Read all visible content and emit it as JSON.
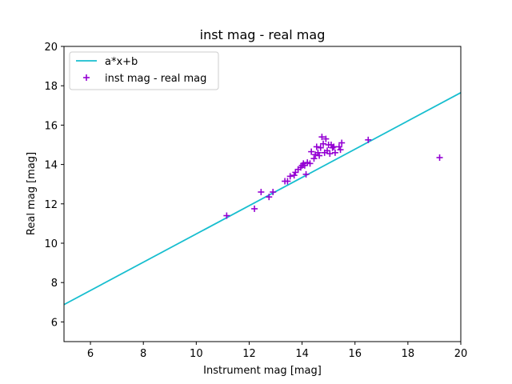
{
  "chart_data": {
    "type": "scatter",
    "title": "inst mag - real mag",
    "xlabel": "Instrument mag [mag]",
    "ylabel": "Real mag [mag]",
    "xlim": [
      5,
      20
    ],
    "ylim": [
      5,
      20
    ],
    "xticks": [
      6,
      8,
      10,
      12,
      14,
      16,
      18,
      20
    ],
    "yticks": [
      6,
      8,
      10,
      12,
      14,
      16,
      18,
      20
    ],
    "grid": false,
    "legend_position": "top-left",
    "series": [
      {
        "name": "a*x+b",
        "kind": "line",
        "color": "#17becf",
        "x": [
          5,
          20
        ],
        "y": [
          6.88,
          17.65
        ]
      },
      {
        "name": "inst mag - real mag",
        "kind": "scatter",
        "marker": "plus",
        "color": "#9400d3",
        "points": [
          [
            11.15,
            11.4
          ],
          [
            12.2,
            11.75
          ],
          [
            12.45,
            12.6
          ],
          [
            12.75,
            12.35
          ],
          [
            12.9,
            12.6
          ],
          [
            13.35,
            13.15
          ],
          [
            13.45,
            13.15
          ],
          [
            13.55,
            13.4
          ],
          [
            13.7,
            13.45
          ],
          [
            13.75,
            13.6
          ],
          [
            13.85,
            13.75
          ],
          [
            13.95,
            13.85
          ],
          [
            14.0,
            13.95
          ],
          [
            14.05,
            14.05
          ],
          [
            14.1,
            13.95
          ],
          [
            14.15,
            13.5
          ],
          [
            14.2,
            14.1
          ],
          [
            14.3,
            14.05
          ],
          [
            14.35,
            14.65
          ],
          [
            14.45,
            14.3
          ],
          [
            14.5,
            14.5
          ],
          [
            14.55,
            14.9
          ],
          [
            14.6,
            14.6
          ],
          [
            14.65,
            14.45
          ],
          [
            14.7,
            14.85
          ],
          [
            14.75,
            15.4
          ],
          [
            14.8,
            15.05
          ],
          [
            14.85,
            14.6
          ],
          [
            14.9,
            15.3
          ],
          [
            14.95,
            14.7
          ],
          [
            15.0,
            15.0
          ],
          [
            15.05,
            14.55
          ],
          [
            15.1,
            15.0
          ],
          [
            15.15,
            14.85
          ],
          [
            15.2,
            14.9
          ],
          [
            15.25,
            14.6
          ],
          [
            15.4,
            14.9
          ],
          [
            15.45,
            14.75
          ],
          [
            15.5,
            15.1
          ],
          [
            16.5,
            15.25
          ],
          [
            19.2,
            14.35
          ]
        ]
      }
    ]
  }
}
